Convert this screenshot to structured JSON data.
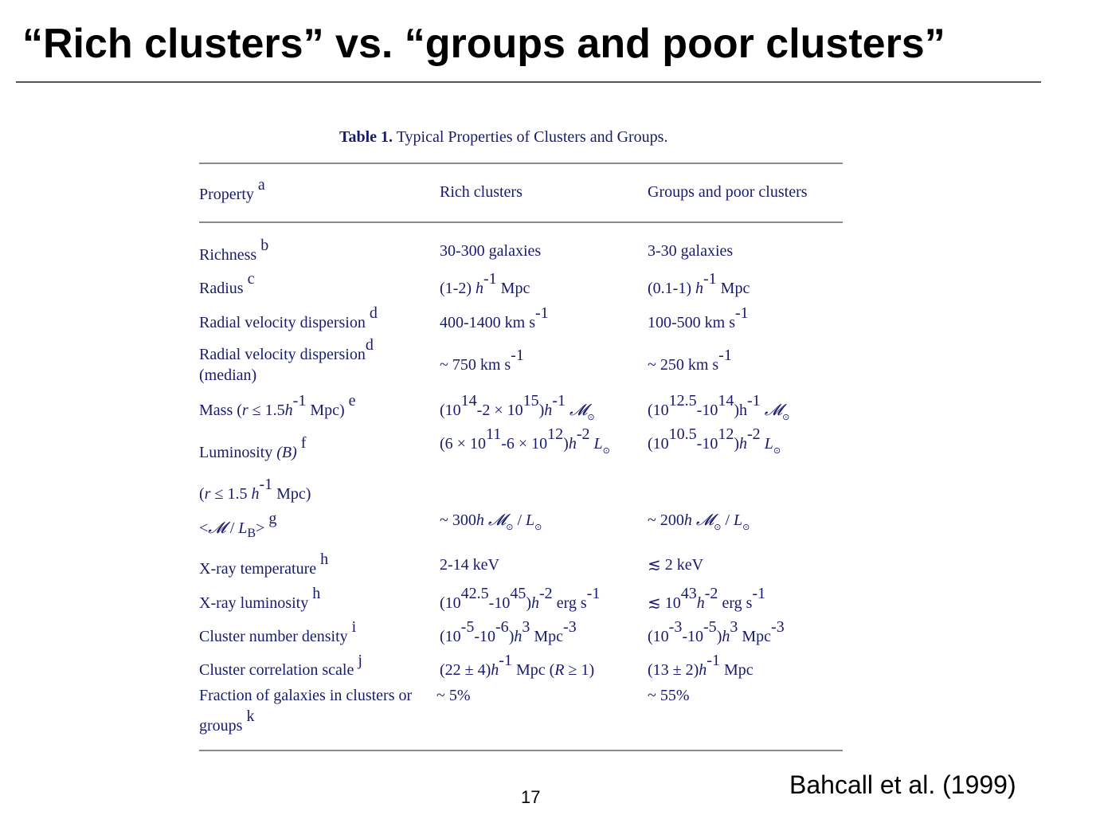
{
  "slide": {
    "title": "“Rich clusters” vs. “groups and poor clusters”",
    "citation": "Bahcall et al. (1999)",
    "page_number": "17"
  },
  "table": {
    "caption_label": "Table 1.",
    "caption_text": "Typical Properties of Clusters and Groups.",
    "headers": {
      "property": "Property",
      "property_note": "a",
      "rich": "Rich clusters",
      "groups": "Groups and poor clusters"
    },
    "rows": {
      "richness": {
        "label": "Richness",
        "note": "b",
        "rich": "30-300 galaxies",
        "groups": "3-30 galaxies"
      },
      "radius": {
        "label": "Radius",
        "note": "c"
      },
      "velocity": {
        "label": "Radial velocity dispersion",
        "note": "d"
      },
      "velocity_median": {
        "label": "Radial velocity dispersion",
        "note": "d",
        "label2": "(median)"
      },
      "mass": {
        "label_prefix": "Mass (",
        "note": "e"
      },
      "luminosity": {
        "label": "Luminosity",
        "note": "f"
      },
      "luminosity_radius": {
        "label": "(r ≤ 1.5 h-1 Mpc)"
      },
      "ml_ratio": {
        "note": "g"
      },
      "xray_temp": {
        "label": "X-ray temperature",
        "note": "h",
        "rich": "2-14 keV",
        "groups": "≲ 2 keV"
      },
      "xray_lum": {
        "label": "X-ray luminosity",
        "note": "h"
      },
      "density": {
        "label": "Cluster number density",
        "note": "i"
      },
      "correlation": {
        "label": "Cluster correlation scale",
        "note": "j"
      },
      "fraction": {
        "label": "Fraction of galaxies in clusters or",
        "label2": "groups",
        "note": "k",
        "rich": "~ 5%",
        "groups": "~ 55%"
      }
    }
  }
}
